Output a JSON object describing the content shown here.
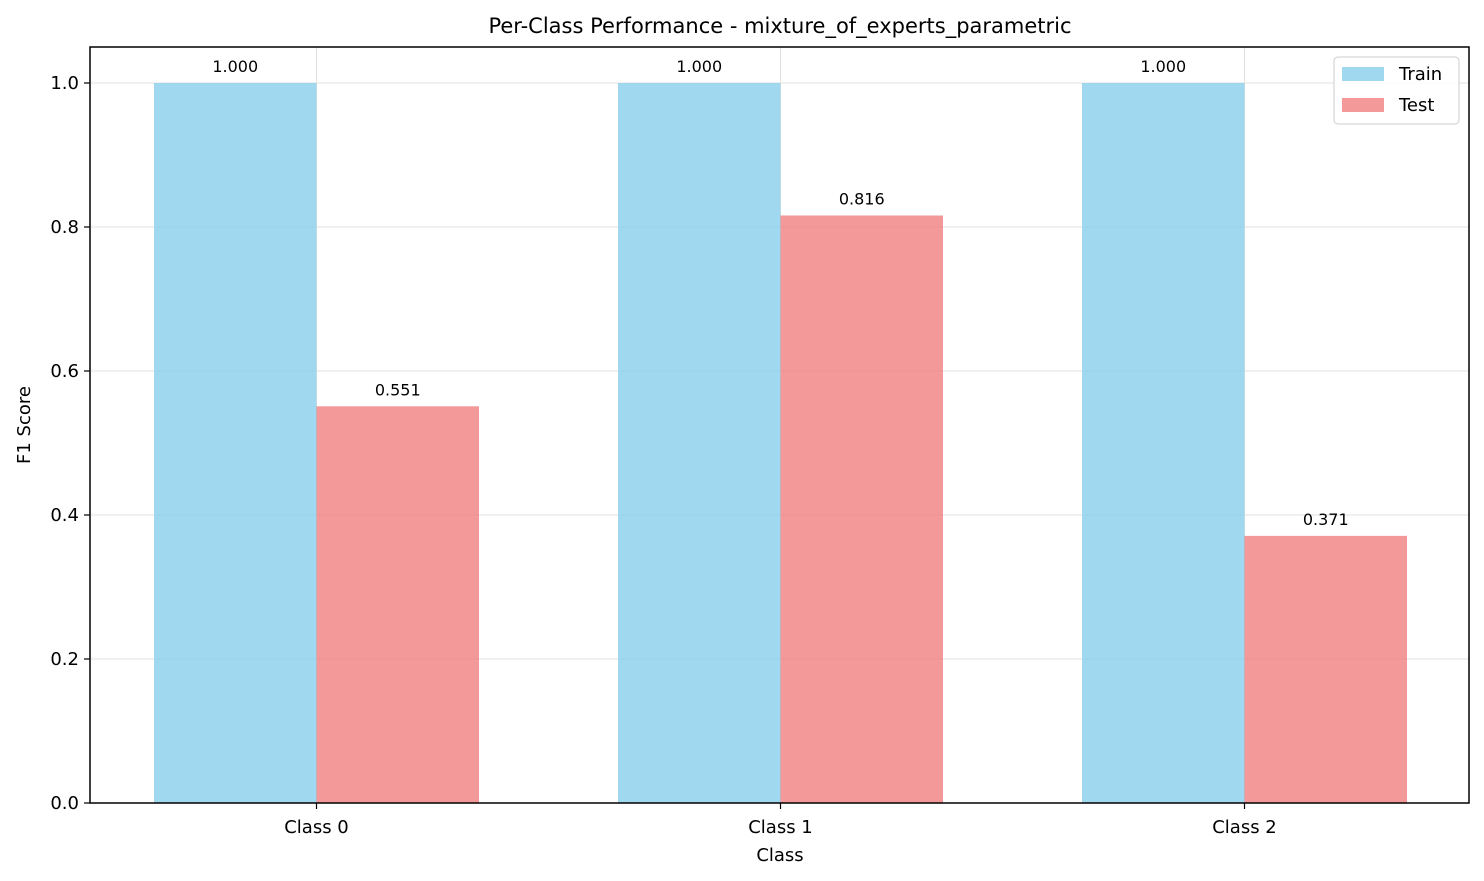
{
  "chart_data": {
    "type": "bar",
    "title": "Per-Class Performance - mixture_of_experts_parametric",
    "xlabel": "Class",
    "ylabel": "F1 Score",
    "categories": [
      "Class 0",
      "Class 1",
      "Class 2"
    ],
    "series": [
      {
        "name": "Train",
        "color": "#87ceeb",
        "values": [
          1.0,
          1.0,
          1.0
        ],
        "labels": [
          "1.000",
          "1.000",
          "1.000"
        ]
      },
      {
        "name": "Test",
        "color": "#f08080",
        "values": [
          0.551,
          0.816,
          0.371
        ],
        "labels": [
          "0.551",
          "0.816",
          "0.371"
        ]
      }
    ],
    "ylim": [
      0,
      1.05
    ],
    "yticks": [
      0.0,
      0.2,
      0.4,
      0.6,
      0.8,
      1.0
    ],
    "ytick_labels": [
      "0.0",
      "0.2",
      "0.4",
      "0.6",
      "0.8",
      "1.0"
    ],
    "grid": true,
    "legend_position": "top-right",
    "bar_opacity": 0.8
  }
}
